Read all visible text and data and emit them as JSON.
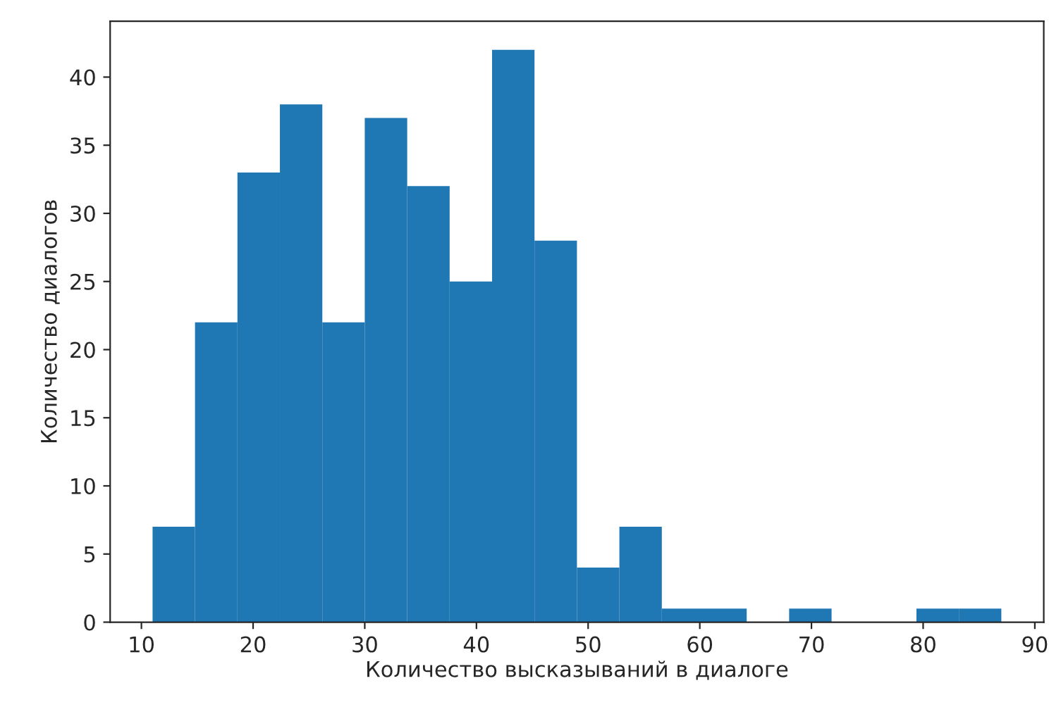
{
  "chart_data": {
    "type": "histogram",
    "xlabel": "Количество высказываний в диалоге",
    "ylabel": "Количество диалогов",
    "color": "#1f77b4",
    "bins": [
      11,
      14.8,
      18.6,
      22.4,
      26.2,
      30,
      33.8,
      37.6,
      41.4,
      45.2,
      49,
      52.8,
      56.6,
      60.4,
      64.2,
      68,
      71.8,
      75.6,
      79.4,
      83.2,
      87
    ],
    "values": [
      7,
      22,
      33,
      38,
      22,
      37,
      32,
      25,
      42,
      28,
      4,
      7,
      1,
      1,
      0,
      1,
      0,
      0,
      1,
      1
    ],
    "xlim": [
      7.2,
      90.8
    ],
    "ylim": [
      0,
      44.1
    ],
    "xticks": [
      10,
      20,
      30,
      40,
      50,
      60,
      70,
      80,
      90
    ],
    "yticks": [
      0,
      5,
      10,
      15,
      20,
      25,
      30,
      35,
      40
    ],
    "grid": false
  }
}
